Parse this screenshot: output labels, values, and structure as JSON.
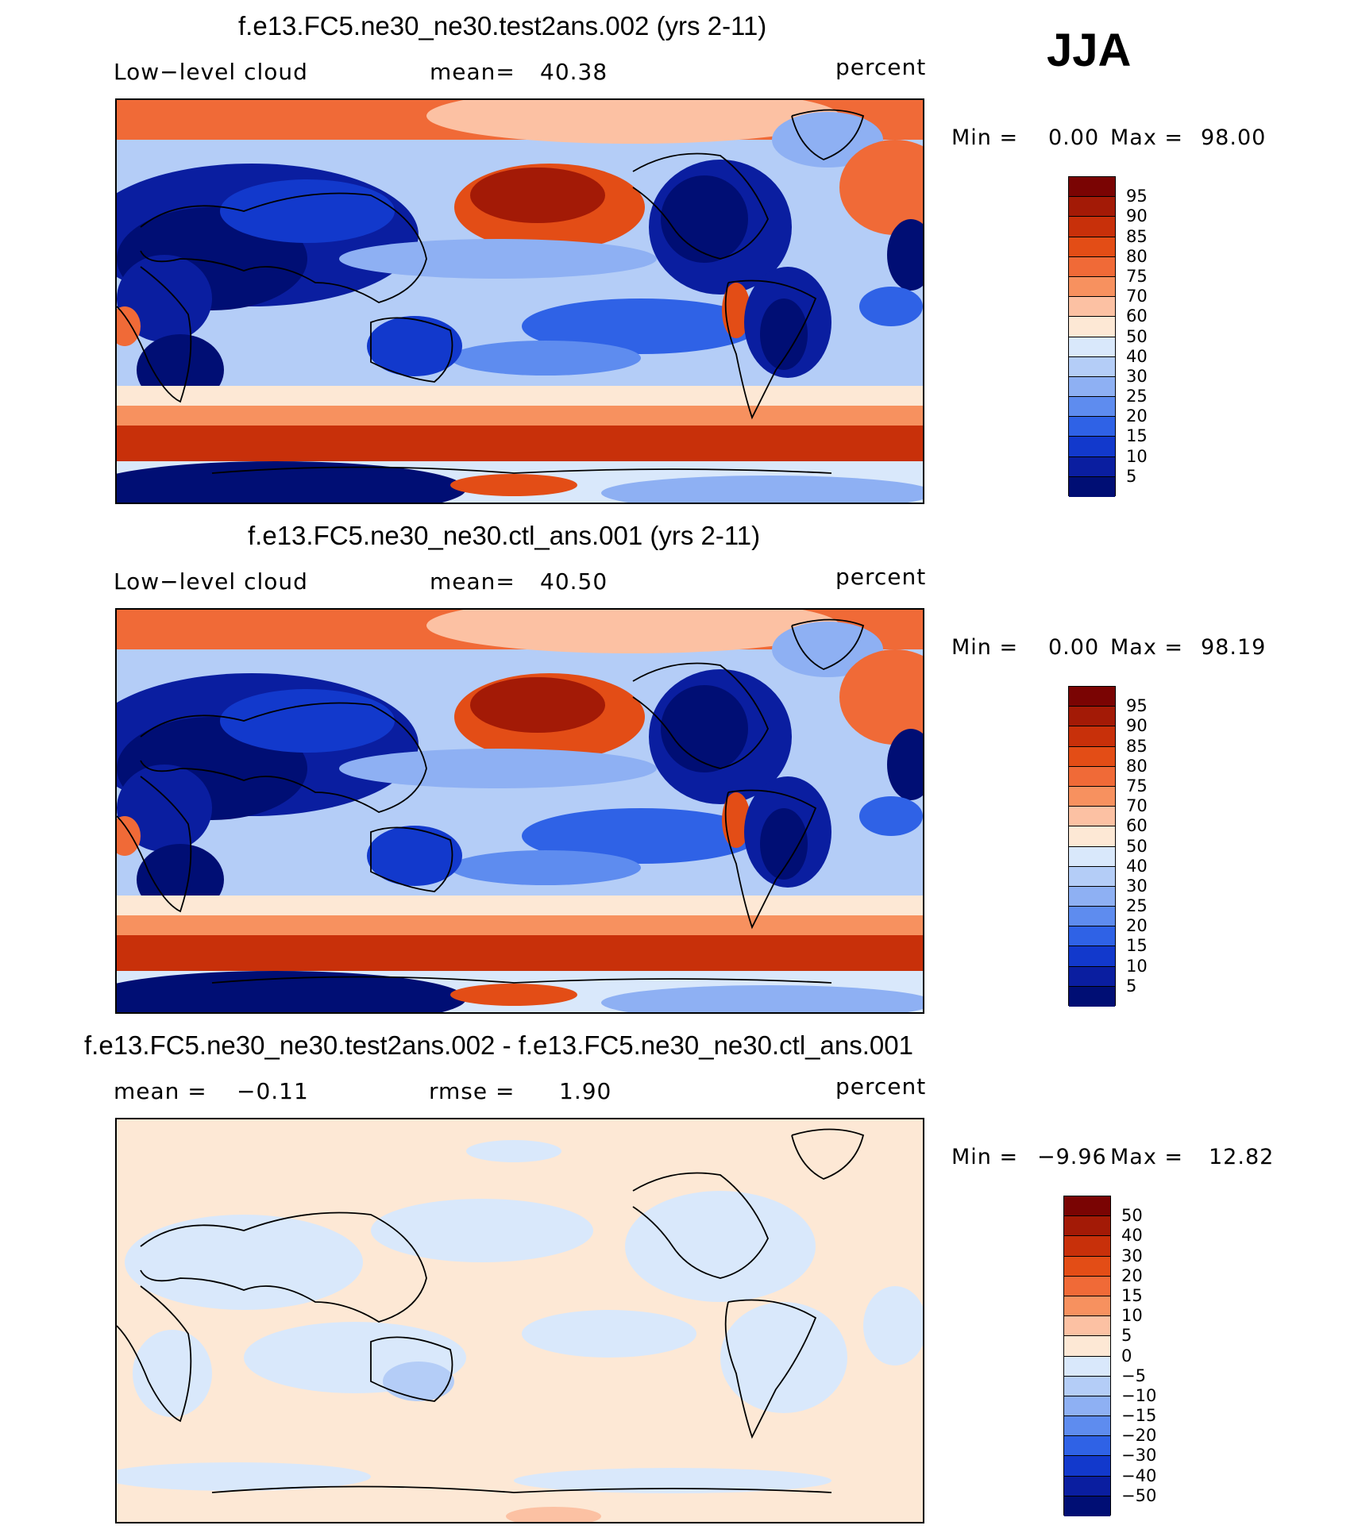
{
  "season": "JJA",
  "panels": [
    {
      "title": "f.e13.FC5.ne30_ne30.test2ans.002 (yrs 2-11)",
      "left_label": "Low−level cloud",
      "stat_label": "mean=",
      "stat_value": "40.38",
      "units": "percent",
      "min_label": "Min =",
      "min_value": "0.00",
      "max_label": "Max =",
      "max_value": "98.00",
      "colorbar_levels": [
        "95",
        "90",
        "85",
        "80",
        "75",
        "70",
        "60",
        "50",
        "40",
        "30",
        "25",
        "20",
        "15",
        "10",
        "5"
      ],
      "colorbar_colors": [
        "#7a0403",
        "#a31a06",
        "#c8300a",
        "#e34d16",
        "#f06a37",
        "#f7915f",
        "#fcc1a3",
        "#fde8d5",
        "#d9e8fb",
        "#b4cdf7",
        "#8eb0f3",
        "#5e8cef",
        "#2f62e6",
        "#1239cc",
        "#0a1ea0",
        "#000e74"
      ]
    },
    {
      "title": "f.e13.FC5.ne30_ne30.ctl_ans.001 (yrs 2-11)",
      "left_label": "Low−level cloud",
      "stat_label": "mean=",
      "stat_value": "40.50",
      "units": "percent",
      "min_label": "Min =",
      "min_value": "0.00",
      "max_label": "Max =",
      "max_value": "98.19",
      "colorbar_levels": [
        "95",
        "90",
        "85",
        "80",
        "75",
        "70",
        "60",
        "50",
        "40",
        "30",
        "25",
        "20",
        "15",
        "10",
        "5"
      ],
      "colorbar_colors": [
        "#7a0403",
        "#a31a06",
        "#c8300a",
        "#e34d16",
        "#f06a37",
        "#f7915f",
        "#fcc1a3",
        "#fde8d5",
        "#d9e8fb",
        "#b4cdf7",
        "#8eb0f3",
        "#5e8cef",
        "#2f62e6",
        "#1239cc",
        "#0a1ea0",
        "#000e74"
      ]
    },
    {
      "title": "f.e13.FC5.ne30_ne30.test2ans.002 - f.e13.FC5.ne30_ne30.ctl_ans.001",
      "left_label": "mean =",
      "left_value": "−0.11",
      "stat_label": "rmse =",
      "stat_value": "1.90",
      "units": "percent",
      "min_label": "Min =",
      "min_value": "−9.96",
      "max_label": "Max =",
      "max_value": "12.82",
      "colorbar_levels": [
        "50",
        "40",
        "30",
        "20",
        "15",
        "10",
        "5",
        "0",
        "−5",
        "−10",
        "−15",
        "−20",
        "−30",
        "−40",
        "−50"
      ],
      "colorbar_colors": [
        "#7a0403",
        "#a31a06",
        "#c8300a",
        "#e34d16",
        "#f06a37",
        "#f7915f",
        "#fcc1a3",
        "#fde8d5",
        "#d9e8fb",
        "#b4cdf7",
        "#8eb0f3",
        "#5e8cef",
        "#2f62e6",
        "#1239cc",
        "#0a1ea0",
        "#000e74"
      ]
    }
  ]
}
